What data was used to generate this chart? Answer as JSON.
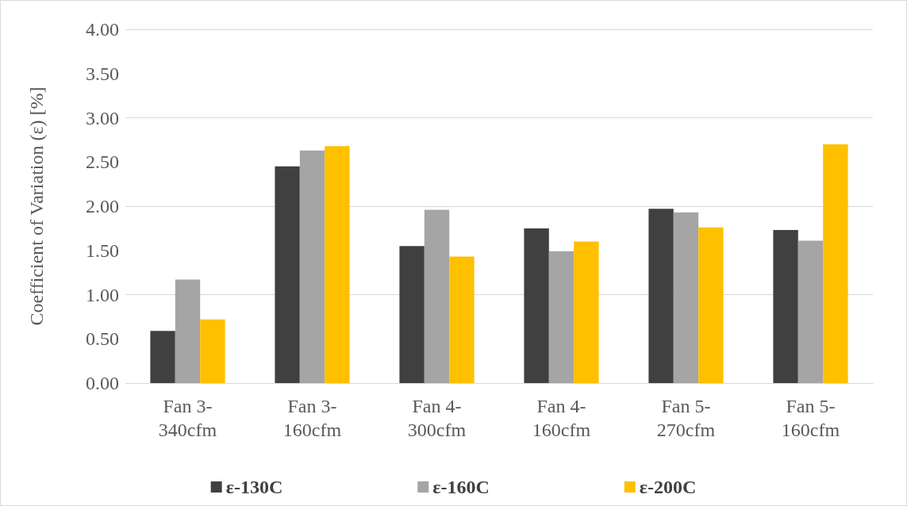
{
  "chart_data": {
    "type": "bar",
    "ylabel": "Coefficient of Variation (ε) [%]",
    "categories": [
      "Fan 3-340cfm",
      "Fan 3-160cfm",
      "Fan 4-300cfm",
      "Fan 4-160cfm",
      "Fan 5-270cfm",
      "Fan 5-160cfm"
    ],
    "series": [
      {
        "name": "ε-130C",
        "color": "#404040",
        "values": [
          0.59,
          2.45,
          1.55,
          1.75,
          1.97,
          1.73
        ]
      },
      {
        "name": "ε-160C",
        "color": "#a5a5a5",
        "values": [
          1.17,
          2.63,
          1.96,
          1.49,
          1.93,
          1.61
        ]
      },
      {
        "name": "ε-200C",
        "color": "#ffc000",
        "values": [
          0.72,
          2.68,
          1.43,
          1.6,
          1.76,
          2.7
        ]
      }
    ],
    "ylim": [
      0,
      4
    ],
    "yticks": [
      {
        "value": 0,
        "label": "0.00"
      },
      {
        "value": 0.5,
        "label": "0.50"
      },
      {
        "value": 1,
        "label": "1.00"
      },
      {
        "value": 1.5,
        "label": "1.50"
      },
      {
        "value": 2,
        "label": "2.00"
      },
      {
        "value": 2.5,
        "label": "2.50"
      },
      {
        "value": 3,
        "label": "3.00"
      },
      {
        "value": 3.5,
        "label": "3.50"
      },
      {
        "value": 4,
        "label": "4.00"
      }
    ],
    "grid": "y",
    "legend": "bottom"
  }
}
